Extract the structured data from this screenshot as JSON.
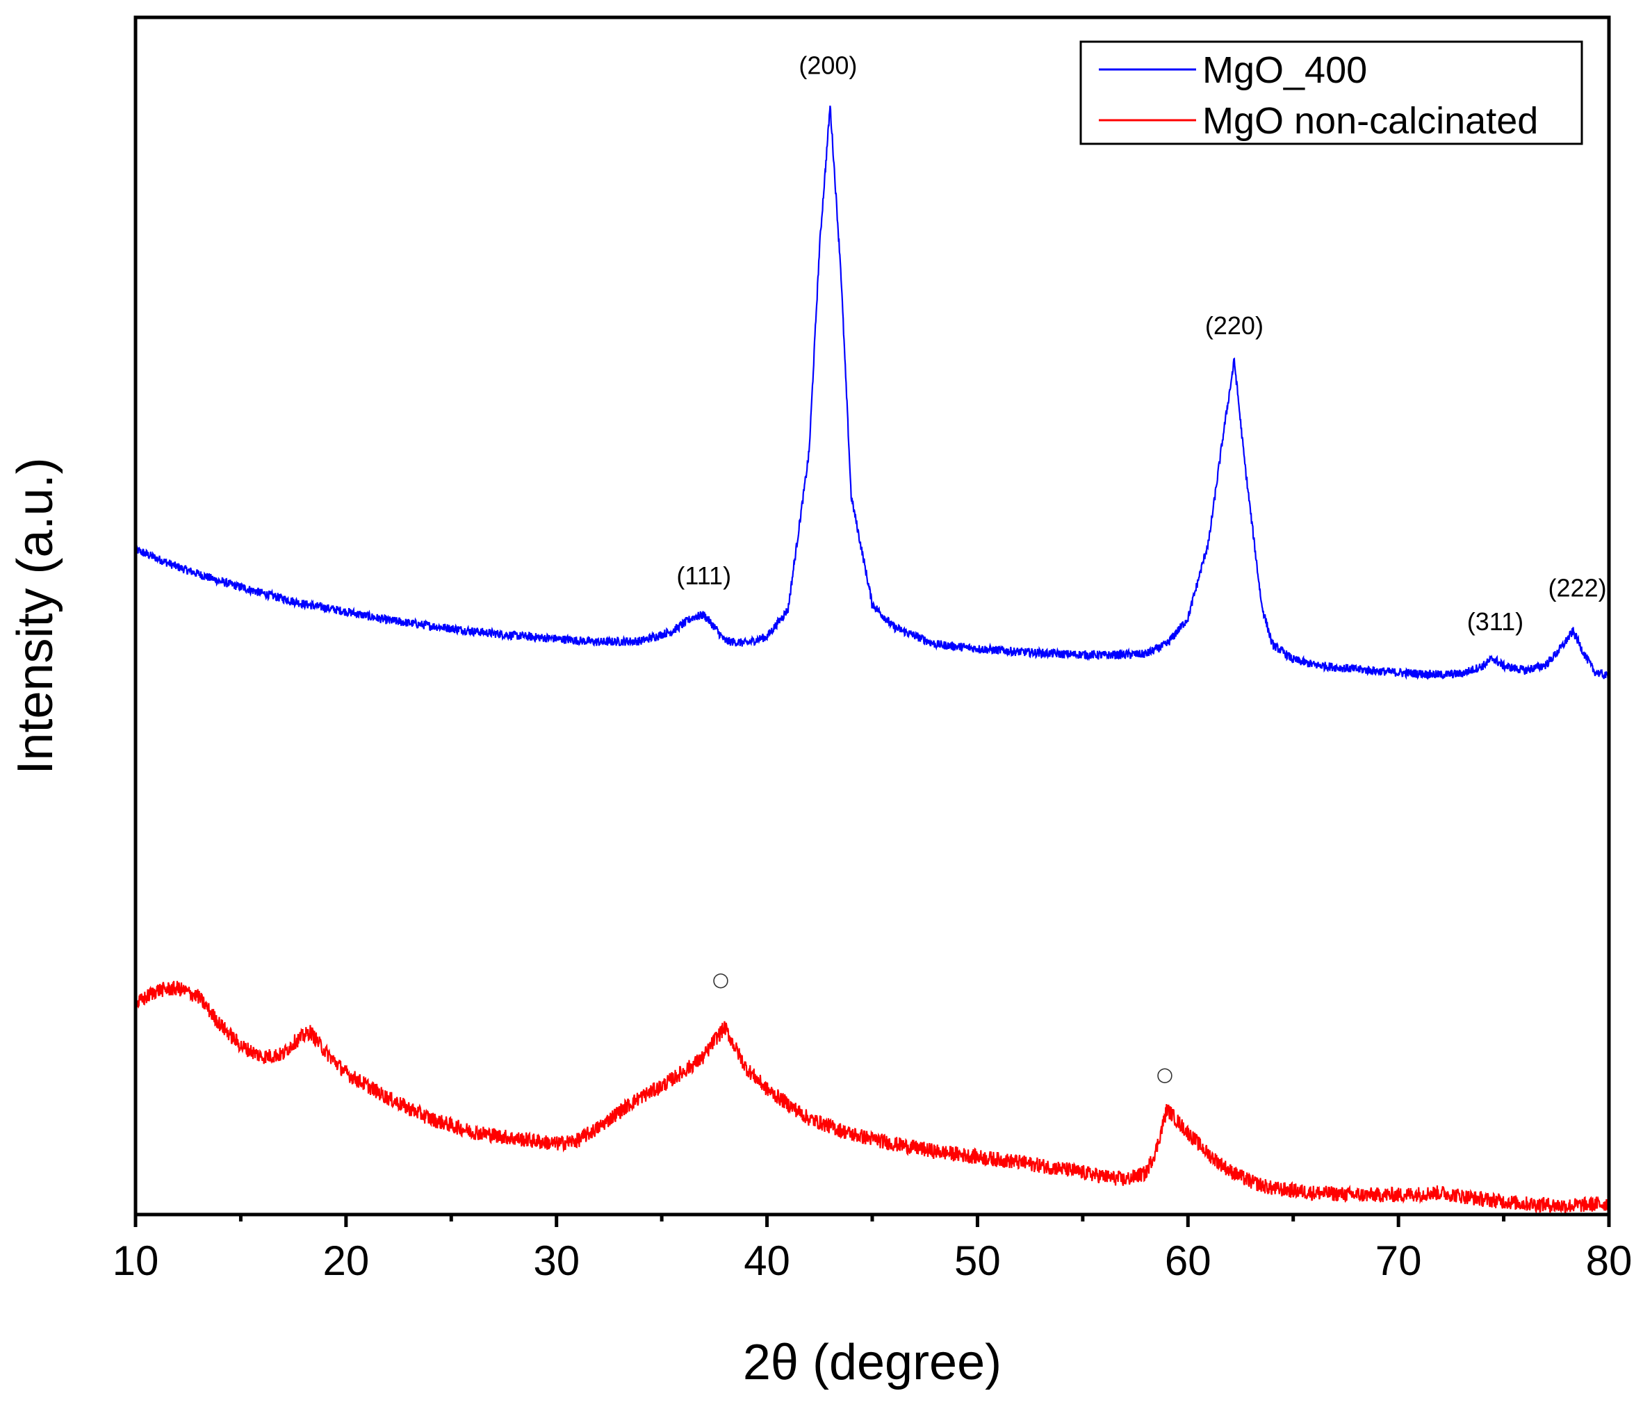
{
  "chart_data": {
    "type": "line",
    "title": "",
    "xlabel": "2θ (degree)",
    "ylabel": "Intensity (a.u.)",
    "xlim": [
      10,
      80
    ],
    "ylim": [
      0,
      1.1
    ],
    "x_ticks": [
      10,
      20,
      30,
      40,
      50,
      60,
      70,
      80
    ],
    "x_tick_labels": [
      "10",
      "20",
      "30",
      "40",
      "50",
      "60",
      "70",
      "80"
    ],
    "y_ticks_shown": false,
    "legend_position": "top-right",
    "series": [
      {
        "name": "MgO_400",
        "color": "#0000ff",
        "x": [
          10,
          12,
          14,
          16,
          18,
          20,
          22,
          24,
          26,
          28,
          30,
          32,
          34,
          35.5,
          36.5,
          37,
          37.5,
          38,
          39,
          40,
          41,
          42,
          42.5,
          43,
          43.5,
          44,
          45,
          46,
          48,
          50,
          52,
          54,
          56,
          58,
          59,
          60,
          61,
          61.7,
          62.2,
          62.7,
          63.5,
          64,
          65,
          66,
          68,
          70,
          72,
          73,
          74,
          74.5,
          75,
          76,
          77,
          77.7,
          78.3,
          78.8,
          79.3,
          80
        ],
        "values": [
          0.611,
          0.595,
          0.582,
          0.571,
          0.561,
          0.554,
          0.546,
          0.541,
          0.536,
          0.532,
          0.529,
          0.526,
          0.527,
          0.536,
          0.549,
          0.551,
          0.54,
          0.527,
          0.525,
          0.531,
          0.556,
          0.7,
          0.89,
          1.019,
          0.87,
          0.66,
          0.561,
          0.54,
          0.524,
          0.52,
          0.517,
          0.515,
          0.514,
          0.515,
          0.524,
          0.548,
          0.62,
          0.72,
          0.785,
          0.69,
          0.56,
          0.524,
          0.51,
          0.505,
          0.501,
          0.498,
          0.496,
          0.497,
          0.504,
          0.511,
          0.504,
          0.5,
          0.505,
          0.52,
          0.536,
          0.516,
          0.499,
          0.494
        ]
      },
      {
        "name": "MgO non-calcinated",
        "color": "#ff0000",
        "x": [
          10,
          11,
          12,
          13,
          14,
          15,
          16,
          17,
          17.5,
          18.3,
          19,
          20,
          22,
          24,
          26,
          28,
          30,
          31,
          32,
          33,
          34,
          35,
          36,
          37,
          37.5,
          38,
          38.5,
          39,
          40,
          42,
          44,
          46,
          48,
          50,
          52,
          54,
          56,
          57,
          58,
          58.5,
          59,
          60,
          61,
          62,
          63,
          64,
          66,
          68,
          70,
          72,
          74,
          76,
          78,
          80
        ],
        "values": [
          0.193,
          0.206,
          0.208,
          0.2,
          0.175,
          0.155,
          0.145,
          0.147,
          0.158,
          0.168,
          0.15,
          0.13,
          0.107,
          0.088,
          0.076,
          0.07,
          0.065,
          0.068,
          0.08,
          0.095,
          0.108,
          0.118,
          0.131,
          0.145,
          0.16,
          0.172,
          0.153,
          0.135,
          0.115,
          0.088,
          0.074,
          0.065,
          0.058,
          0.053,
          0.048,
          0.042,
          0.035,
          0.032,
          0.038,
          0.06,
          0.097,
          0.075,
          0.055,
          0.04,
          0.03,
          0.024,
          0.02,
          0.018,
          0.018,
          0.02,
          0.014,
          0.01,
          0.008,
          0.01
        ]
      }
    ],
    "annotations": [
      {
        "text": "(200)",
        "x": 42.9,
        "y": 1.048
      },
      {
        "text": "(111)",
        "x": 37.0,
        "y": 0.579
      },
      {
        "text": "(220)",
        "x": 62.2,
        "y": 0.809
      },
      {
        "text": "(311)",
        "x": 74.6,
        "y": 0.537
      },
      {
        "text": "(222)",
        "x": 78.5,
        "y": 0.568
      },
      {
        "text": "○",
        "x": 37.8,
        "y": 0.21
      },
      {
        "text": "○",
        "x": 58.9,
        "y": 0.123
      }
    ]
  }
}
